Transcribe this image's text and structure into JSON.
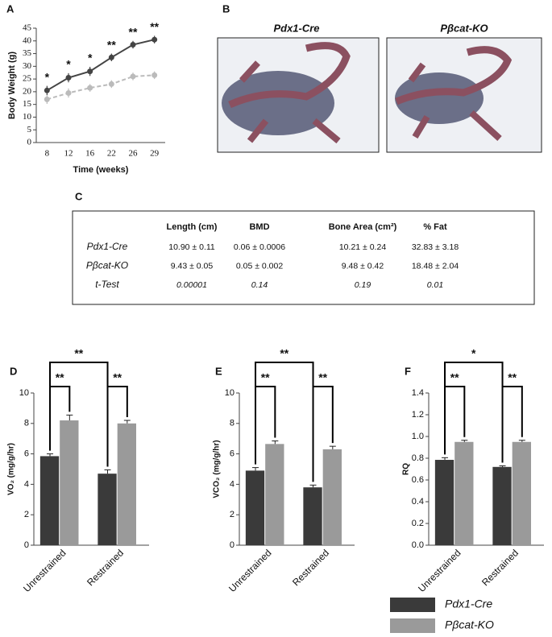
{
  "chart_data": [
    {
      "type": "line",
      "panel_label": "A",
      "x_label": "Time (weeks)",
      "y_label": "Body Weight (g)",
      "categories": [
        "8",
        "12",
        "16",
        "22",
        "26",
        "29"
      ],
      "series": [
        {
          "name": "Pdx1-Cre",
          "color": "#444444",
          "dashed": false,
          "values": [
            20.5,
            25.5,
            28,
            33.5,
            38.5,
            40.5
          ],
          "errors": [
            1.8,
            1.8,
            1.8,
            1.5,
            1.5,
            1.5
          ]
        },
        {
          "name": "Pβcat-KO",
          "color": "#bbbbbb",
          "dashed": true,
          "values": [
            17,
            19.5,
            21.5,
            23,
            26,
            26.5
          ],
          "errors": [
            1.8,
            1.8,
            1.5,
            1.5,
            1.5,
            1.5
          ]
        }
      ],
      "annotations": [
        "*",
        "*",
        "*",
        "**",
        "**",
        "**"
      ],
      "ylim": [
        0,
        45
      ],
      "yticks": [
        0,
        5,
        10,
        15,
        20,
        25,
        30,
        35,
        40,
        45
      ]
    },
    {
      "type": "bar",
      "panel_label": "D",
      "y_label": "VO₂ (mg/g/hr)",
      "categories": [
        "Unrestrained",
        "Restrained"
      ],
      "series": [
        {
          "name": "Pdx1-Cre",
          "color": "#3a3a3a",
          "values": [
            5.85,
            4.7
          ],
          "errors": [
            0.15,
            0.25
          ]
        },
        {
          "name": "Pβcat-KO",
          "color": "#9a9a9a",
          "values": [
            8.2,
            8.0
          ],
          "errors": [
            0.35,
            0.2
          ]
        }
      ],
      "annotations": [
        "**",
        "**",
        "**"
      ],
      "ylim": [
        0,
        10
      ],
      "yticks": [
        0,
        2,
        4,
        6,
        8,
        10
      ]
    },
    {
      "type": "bar",
      "panel_label": "E",
      "y_label": "VCO₂ (mg/g/hr)",
      "categories": [
        "Unrestrained",
        "Restrained"
      ],
      "series": [
        {
          "name": "Pdx1-Cre",
          "color": "#3a3a3a",
          "values": [
            4.9,
            3.8
          ],
          "errors": [
            0.2,
            0.15
          ]
        },
        {
          "name": "Pβcat-KO",
          "color": "#9a9a9a",
          "values": [
            6.65,
            6.3
          ],
          "errors": [
            0.2,
            0.2
          ]
        }
      ],
      "annotations": [
        "**",
        "**",
        "**"
      ],
      "ylim": [
        0,
        10
      ],
      "yticks": [
        0,
        2,
        4,
        6,
        8,
        10
      ]
    },
    {
      "type": "bar",
      "panel_label": "F",
      "y_label": "RQ",
      "categories": [
        "Unrestrained",
        "Restrained"
      ],
      "series": [
        {
          "name": "Pdx1-Cre",
          "color": "#3a3a3a",
          "values": [
            0.785,
            0.72
          ],
          "errors": [
            0.02,
            0.01
          ]
        },
        {
          "name": "Pβcat-KO",
          "color": "#9a9a9a",
          "values": [
            0.95,
            0.95
          ],
          "errors": [
            0.015,
            0.015
          ]
        }
      ],
      "annotations": [
        "**",
        "**",
        "*"
      ],
      "ylim": [
        0,
        1.4
      ],
      "yticks": [
        {
          "value": 0,
          "label": "0.0"
        },
        0.2,
        0.4,
        0.6,
        0.8,
        {
          "value": 1,
          "label": "1.0"
        },
        1.2,
        1.4
      ]
    }
  ],
  "images": {
    "panel_label": "B",
    "titles": [
      "Pdx1-Cre",
      "Pβcat-KO"
    ]
  },
  "table": {
    "panel_label": "C",
    "header": [
      "Length (cm)",
      "BMD",
      "Bone Area (cm²)",
      "% Fat"
    ],
    "rows": [
      {
        "label": "Pdx1-Cre",
        "cells": [
          "10.90 ± 0.11",
          "0.06 ± 0.0006",
          "10.21 ± 0.24",
          "32.83 ± 3.18"
        ]
      },
      {
        "label": "Pβcat-KO",
        "cells": [
          "9.43 ± 0.05",
          "0.05 ± 0.002",
          "9.48 ± 0.42",
          "18.48 ± 2.04"
        ]
      },
      {
        "label": "t-Test",
        "cells": [
          "0.00001",
          "0.14",
          "0.19",
          "0.01"
        ]
      }
    ]
  }
}
